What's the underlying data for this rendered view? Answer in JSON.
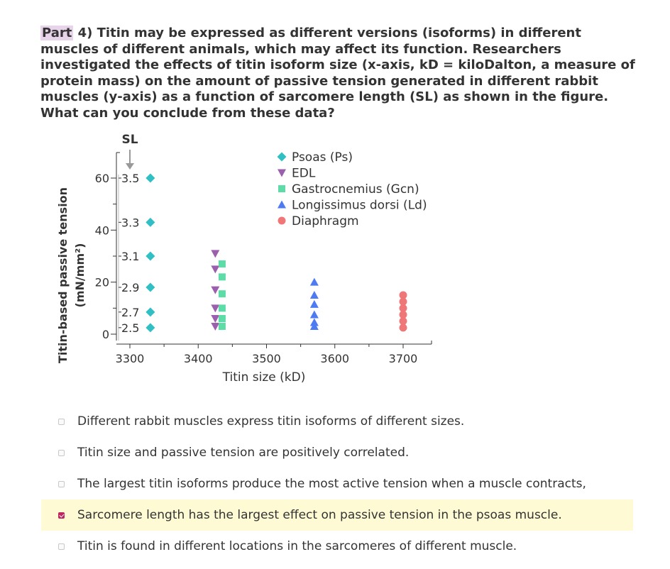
{
  "question": {
    "part_label": "Part",
    "text": "4) Titin may be expressed as different versions (isoforms) in different muscles of different animals, which may affect its function. Researchers investigated the effects of titin isoform size (x-axis, kD = kiloDalton, a measure of protein mass) on the amount of passive tension generated in different rabbit muscles (y-axis) as a function of sarcomere length (SL) as shown in the figure. What can you conclude from these data?"
  },
  "chart_data": {
    "type": "scatter",
    "xlabel": "Titin size (kD)",
    "ylabel_line1": "Titin-based passive tension",
    "ylabel_line2": "(mN/mm²)",
    "xlim": [
      3300,
      3700
    ],
    "ylim": [
      0,
      60
    ],
    "xticks": [
      3300,
      3400,
      3500,
      3600,
      3700
    ],
    "yticks": [
      0,
      20,
      40,
      60
    ],
    "grid": false,
    "legend_position": "top-right",
    "sl_label": "SL",
    "sl_ticks": [
      {
        "label": "3.5",
        "y": 60
      },
      {
        "label": "3.3",
        "y": 43
      },
      {
        "label": "3.1",
        "y": 30
      },
      {
        "label": "2.9",
        "y": 18
      },
      {
        "label": "2.7",
        "y": 8.5
      },
      {
        "label": "2.5",
        "y": 2.5
      }
    ],
    "series": [
      {
        "name": "Psoas (Ps)",
        "marker": "diamond",
        "color": "#2fbfc4",
        "x": 3330,
        "y": [
          60,
          43,
          30,
          18,
          8.5,
          2.5
        ]
      },
      {
        "name": "EDL",
        "marker": "triangle-down",
        "color": "#9b5fae",
        "x": 3425,
        "y": [
          31,
          25,
          17,
          10,
          6,
          3
        ]
      },
      {
        "name": "Gastrocnemius (Gcn)",
        "marker": "square",
        "color": "#5ddca8",
        "x": 3435,
        "y": [
          27,
          22,
          15.5,
          10,
          6,
          3
        ]
      },
      {
        "name": "Longissimus dorsi (Ld)",
        "marker": "triangle-up",
        "color": "#4f7bf2",
        "x": 3570,
        "y": [
          20,
          15,
          11.5,
          7.5,
          4.5,
          3
        ]
      },
      {
        "name": "Diaphragm",
        "marker": "circle",
        "color": "#f07777",
        "x": 3700,
        "y": [
          15,
          12.5,
          10,
          7.5,
          5,
          2.5
        ]
      }
    ]
  },
  "options": [
    {
      "text": "Different rabbit muscles express titin isoforms of different sizes.",
      "checked": false
    },
    {
      "text": "Titin size and passive tension are positively correlated.",
      "checked": false
    },
    {
      "text": "The largest titin isoforms produce the most active tension when a muscle contracts,",
      "checked": false
    },
    {
      "text": "Sarcomere length has the largest effect on passive tension in the psoas muscle.",
      "checked": true
    },
    {
      "text": "Titin is found in different locations in the sarcomeres of different muscle.",
      "checked": false
    }
  ]
}
